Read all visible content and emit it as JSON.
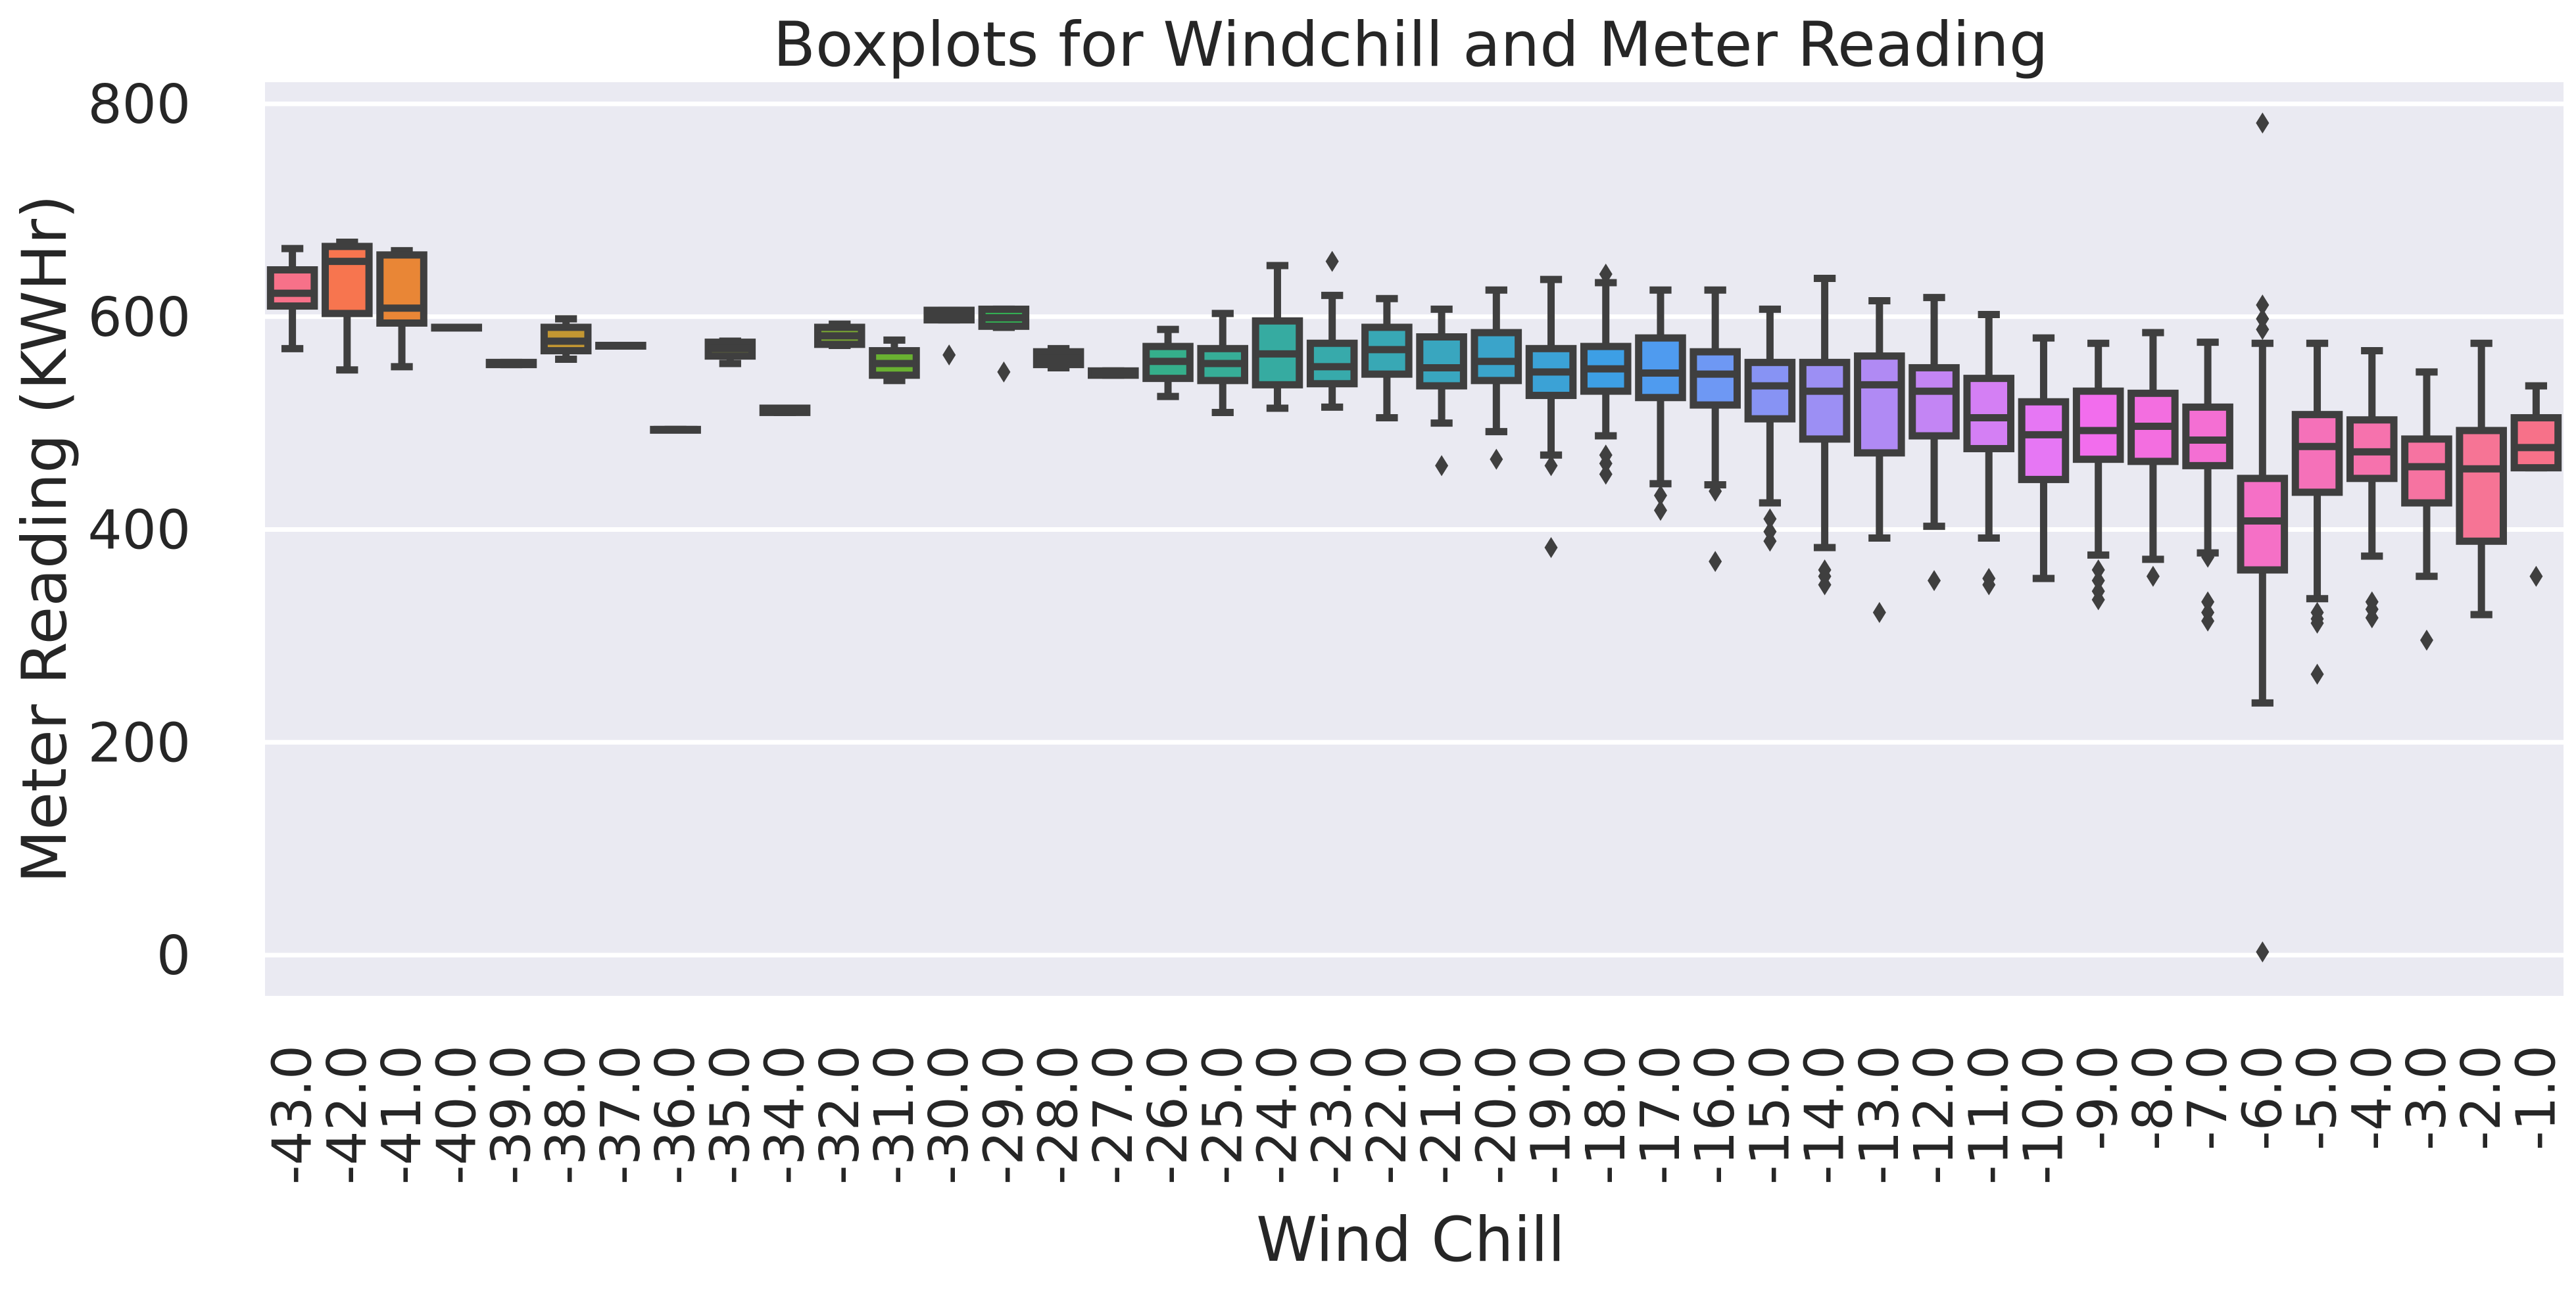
{
  "chart_data": {
    "type": "boxplot",
    "title": "Boxplots for Windchill and Meter Reading",
    "xlabel": "Wind Chill",
    "ylabel": "Meter Reading (KWHr)",
    "ylim": [
      -35,
      820
    ],
    "yticks": [
      0,
      200,
      400,
      600,
      800
    ],
    "grid": true,
    "legend": "none",
    "categories": [
      "-43.0",
      "-42.0",
      "-41.0",
      "-40.0",
      "-39.0",
      "-38.0",
      "-37.0",
      "-36.0",
      "-35.0",
      "-34.0",
      "-32.0",
      "-31.0",
      "-30.0",
      "-29.0",
      "-28.0",
      "-27.0",
      "-26.0",
      "-25.0",
      "-24.0",
      "-23.0",
      "-22.0",
      "-21.0",
      "-20.0",
      "-19.0",
      "-18.0",
      "-17.0",
      "-16.0",
      "-15.0",
      "-14.0",
      "-13.0",
      "-12.0",
      "-11.0",
      "-10.0",
      "-9.0",
      "-8.0",
      "-7.0",
      "-6.0",
      "-5.0",
      "-4.0",
      "-3.0",
      "-2.0",
      "-1.0"
    ],
    "boxes": [
      {
        "whislo": 570,
        "q1": 610,
        "med": 622,
        "q3": 644,
        "whishi": 664,
        "fliers": [],
        "color": "#f77189"
      },
      {
        "whislo": 550,
        "q1": 603,
        "med": 652,
        "q3": 666,
        "whishi": 670,
        "fliers": [],
        "color": "#f7754f"
      },
      {
        "whislo": 553,
        "q1": 594,
        "med": 608,
        "q3": 658,
        "whishi": 662,
        "fliers": [],
        "color": "#e98636"
      },
      {
        "whislo": 590,
        "q1": 590,
        "med": 590,
        "q3": 590,
        "whishi": 590,
        "fliers": [],
        "color": "#dd8c32"
      },
      {
        "whislo": 555,
        "q1": 555,
        "med": 556,
        "q3": 557,
        "whishi": 557,
        "fliers": [],
        "color": "#d08f32"
      },
      {
        "whislo": 560,
        "q1": 568,
        "med": 577,
        "q3": 590,
        "whishi": 598,
        "fliers": [],
        "color": "#c39732"
      },
      {
        "whislo": 573,
        "q1": 573,
        "med": 573,
        "q3": 573,
        "whishi": 573,
        "fliers": [],
        "color": "#b69d31"
      },
      {
        "whislo": 494,
        "q1": 494,
        "med": 494,
        "q3": 494,
        "whishi": 494,
        "fliers": [],
        "color": "#a9a231"
      },
      {
        "whislo": 556,
        "q1": 563,
        "med": 570,
        "q3": 576,
        "whishi": 577,
        "fliers": [],
        "color": "#9ca631"
      },
      {
        "whislo": 510,
        "q1": 510,
        "med": 512,
        "q3": 514,
        "whishi": 514,
        "fliers": [],
        "color": "#8faa31"
      },
      {
        "whislo": 573,
        "q1": 574,
        "med": 582,
        "q3": 590,
        "whishi": 593,
        "fliers": [],
        "color": "#7dae31"
      },
      {
        "whislo": 540,
        "q1": 545,
        "med": 556,
        "q3": 568,
        "whishi": 578,
        "fliers": [],
        "color": "#69b131"
      },
      {
        "whislo": 597,
        "q1": 597,
        "med": 602,
        "q3": 606,
        "whishi": 606,
        "fliers": [
          564
        ],
        "color": "#4bb432"
      },
      {
        "whislo": 590,
        "q1": 591,
        "med": 599,
        "q3": 607,
        "whishi": 607,
        "fliers": [
          548
        ],
        "color": "#33b555"
      },
      {
        "whislo": 552,
        "q1": 555,
        "med": 561,
        "q3": 567,
        "whishi": 570,
        "fliers": [],
        "color": "#34b36e"
      },
      {
        "whislo": 545,
        "q1": 545,
        "med": 547,
        "q3": 549,
        "whishi": 549,
        "fliers": [],
        "color": "#35b17f"
      },
      {
        "whislo": 525,
        "q1": 542,
        "med": 558,
        "q3": 572,
        "whishi": 588,
        "fliers": [],
        "color": "#35af8b"
      },
      {
        "whislo": 510,
        "q1": 540,
        "med": 556,
        "q3": 570,
        "whishi": 603,
        "fliers": [],
        "color": "#36ad97"
      },
      {
        "whislo": 514,
        "q1": 536,
        "med": 565,
        "q3": 596,
        "whishi": 648,
        "fliers": [],
        "color": "#36aba1"
      },
      {
        "whislo": 515,
        "q1": 537,
        "med": 553,
        "q3": 575,
        "whishi": 620,
        "fliers": [
          652
        ],
        "color": "#37aaab"
      },
      {
        "whislo": 505,
        "q1": 546,
        "med": 569,
        "q3": 590,
        "whishi": 617,
        "fliers": [],
        "color": "#38a8b5"
      },
      {
        "whislo": 500,
        "q1": 535,
        "med": 552,
        "q3": 581,
        "whishi": 607,
        "fliers": [
          460
        ],
        "color": "#39a6bf"
      },
      {
        "whislo": 492,
        "q1": 540,
        "med": 558,
        "q3": 585,
        "whishi": 625,
        "fliers": [
          466
        ],
        "color": "#3aa4ca"
      },
      {
        "whislo": 470,
        "q1": 526,
        "med": 548,
        "q3": 570,
        "whishi": 635,
        "fliers": [
          460,
          383
        ],
        "color": "#3ba2d6"
      },
      {
        "whislo": 488,
        "q1": 530,
        "med": 551,
        "q3": 572,
        "whishi": 632,
        "fliers": [
          640,
          470,
          462,
          452
        ],
        "color": "#3d9fe5"
      },
      {
        "whislo": 443,
        "q1": 524,
        "med": 547,
        "q3": 580,
        "whishi": 625,
        "fliers": [
          432,
          418
        ],
        "color": "#4f9bef"
      },
      {
        "whislo": 442,
        "q1": 517,
        "med": 546,
        "q3": 567,
        "whishi": 625,
        "fliers": [
          436,
          370
        ],
        "color": "#6e98f4"
      },
      {
        "whislo": 425,
        "q1": 504,
        "med": 535,
        "q3": 557,
        "whishi": 607,
        "fliers": [
          410,
          398,
          389
        ],
        "color": "#8793f4"
      },
      {
        "whislo": 383,
        "q1": 485,
        "med": 530,
        "q3": 557,
        "whishi": 636,
        "fliers": [
          362,
          356,
          348
        ],
        "color": "#9c8ff4"
      },
      {
        "whislo": 392,
        "q1": 472,
        "med": 536,
        "q3": 563,
        "whishi": 615,
        "fliers": [
          322
        ],
        "color": "#b08af4"
      },
      {
        "whislo": 403,
        "q1": 488,
        "med": 530,
        "q3": 552,
        "whishi": 618,
        "fliers": [
          352
        ],
        "color": "#c385f4"
      },
      {
        "whislo": 392,
        "q1": 476,
        "med": 505,
        "q3": 542,
        "whishi": 602,
        "fliers": [
          354,
          348
        ],
        "color": "#d47ff4"
      },
      {
        "whislo": 354,
        "q1": 447,
        "med": 489,
        "q3": 520,
        "whishi": 580,
        "fliers": [],
        "color": "#e677f4"
      },
      {
        "whislo": 376,
        "q1": 466,
        "med": 493,
        "q3": 530,
        "whishi": 575,
        "fliers": [
          362,
          352,
          342,
          334
        ],
        "color": "#f26ded"
      },
      {
        "whislo": 372,
        "q1": 464,
        "med": 497,
        "q3": 528,
        "whishi": 585,
        "fliers": [
          356
        ],
        "color": "#f36ee0"
      },
      {
        "whislo": 378,
        "q1": 460,
        "med": 484,
        "q3": 515,
        "whishi": 576,
        "fliers": [
          374,
          332,
          322,
          314
        ],
        "color": "#f46fd3"
      },
      {
        "whislo": 237,
        "q1": 362,
        "med": 408,
        "q3": 448,
        "whishi": 575,
        "fliers": [
          782,
          611,
          598,
          588,
          3
        ],
        "color": "#f570c6"
      },
      {
        "whislo": 335,
        "q1": 435,
        "med": 478,
        "q3": 508,
        "whishi": 575,
        "fliers": [
          322,
          316,
          312,
          264
        ],
        "color": "#f571b9"
      },
      {
        "whislo": 375,
        "q1": 448,
        "med": 473,
        "q3": 503,
        "whishi": 568,
        "fliers": [
          332,
          325,
          317
        ],
        "color": "#f672ad"
      },
      {
        "whislo": 356,
        "q1": 425,
        "med": 459,
        "q3": 485,
        "whishi": 548,
        "fliers": [
          296
        ],
        "color": "#f673a1"
      },
      {
        "whislo": 320,
        "q1": 389,
        "med": 457,
        "q3": 493,
        "whishi": 575,
        "fliers": [],
        "color": "#f67495"
      },
      {
        "whislo": 458,
        "q1": 458,
        "med": 477,
        "q3": 505,
        "whishi": 535,
        "fliers": [
          356
        ],
        "color": "#f77189"
      }
    ]
  }
}
